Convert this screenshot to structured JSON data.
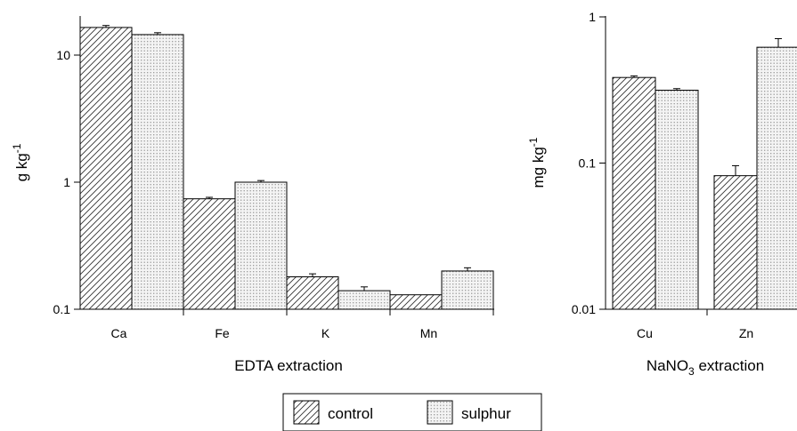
{
  "chart_data": [
    {
      "type": "bar",
      "categories": [
        "Ca",
        "Fe",
        "K",
        "Mn"
      ],
      "series": [
        {
          "name": "control",
          "values": [
            16.5,
            0.74,
            0.18,
            0.13
          ],
          "errors": [
            0.6,
            0.02,
            0.01,
            0
          ]
        },
        {
          "name": "sulphur",
          "values": [
            14.5,
            1.0,
            0.14,
            0.2
          ],
          "errors": [
            0.5,
            0.03,
            0.01,
            0.012
          ]
        }
      ],
      "xlabel": "EDTA extraction",
      "ylabel_base": "g kg",
      "ylabel_sup": "-1",
      "yscale": "log",
      "ylim": [
        0.1,
        20
      ],
      "yticks": [
        0.1,
        1,
        10
      ],
      "ytick_labels": [
        "0.1",
        "1",
        "10"
      ],
      "grid": false
    },
    {
      "type": "bar",
      "categories": [
        "Cu",
        "Zn"
      ],
      "series": [
        {
          "name": "control",
          "values": [
            0.385,
            0.082
          ],
          "errors": [
            0.01,
            0.014
          ]
        },
        {
          "name": "sulphur",
          "values": [
            0.315,
            0.62
          ],
          "errors": [
            0.008,
            0.09
          ]
        }
      ],
      "xlabel_pre": "NaNO",
      "xlabel_sub": "3",
      "xlabel_post": " extraction",
      "ylabel_base": "mg kg",
      "ylabel_sup": "-1",
      "yscale": "log",
      "ylim": [
        0.01,
        1
      ],
      "yticks": [
        0.01,
        0.1,
        1
      ],
      "ytick_labels": [
        "0.01",
        "0.1",
        "1"
      ],
      "grid": false
    }
  ],
  "legend": {
    "position": "bottom-center",
    "items": [
      {
        "label": "control",
        "pattern": "hatch"
      },
      {
        "label": "sulphur",
        "pattern": "dots"
      }
    ]
  }
}
